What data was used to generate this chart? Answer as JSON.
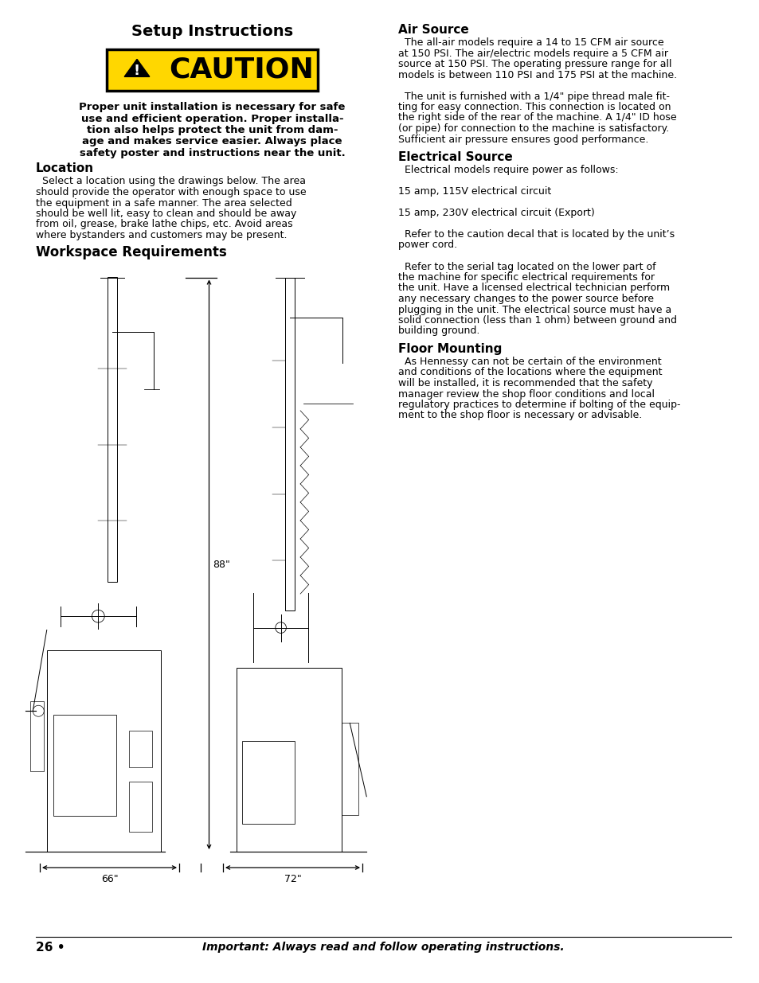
{
  "page_bg": "#ffffff",
  "title": "Setup Instructions",
  "caution_text": "CAUTION",
  "caution_bg": "#FFD700",
  "caution_border": "#000000",
  "loc_head": "Location",
  "ws_head": "Workspace Requirements",
  "dim_88": "88\"",
  "dim_66": "66\"",
  "dim_72": "72\"",
  "left_col_bold_lines": [
    "Proper unit installation is necessary for safe",
    "use and efficient operation. Proper installa-",
    "tion also helps protect the unit from dam-",
    "age and makes service easier. Always place",
    "safety poster and instructions near the unit."
  ],
  "loc_lines": [
    "  Select a location using the drawings below. The area",
    "should provide the operator with enough space to use",
    "the equipment in a safe manner. The area selected",
    "should be well lit, easy to clean and should be away",
    "from oil, grease, brake lathe chips, etc. Avoid areas",
    "where bystanders and customers may be present."
  ],
  "air_head": "Air Source",
  "air_lines": [
    "  The all-air models require a 14 to 15 CFM air source",
    "at 150 PSI. The air/electric models require a 5 CFM air",
    "source at 150 PSI. The operating pressure range for all",
    "models is between 110 PSI and 175 PSI at the machine.",
    "",
    "  The unit is furnished with a 1/4\" pipe thread male fit-",
    "ting for easy connection. This connection is located on",
    "the right side of the rear of the machine. A 1/4\" ID hose",
    "(or pipe) for connection to the machine is satisfactory.",
    "Sufficient air pressure ensures good performance."
  ],
  "elec_head": "Electrical Source",
  "elec_lines": [
    "  Electrical models require power as follows:",
    "",
    "15 amp, 115V electrical circuit",
    "",
    "15 amp, 230V electrical circuit (Export)",
    "",
    "  Refer to the caution decal that is located by the unit’s",
    "power cord.",
    "",
    "  Refer to the serial tag located on the lower part of",
    "the machine for specific electrical requirements for",
    "the unit. Have a licensed electrical technician perform",
    "any necessary changes to the power source before",
    "plugging in the unit. The electrical source must have a",
    "solid connection (less than 1 ohm) between ground and",
    "building ground."
  ],
  "floor_head": "Floor Mounting",
  "floor_lines": [
    "  As Hennessy can not be certain of the environment",
    "and conditions of the locations where the equipment",
    "will be installed, it is recommended that the safety",
    "manager review the shop floor conditions and local",
    "regulatory practices to determine if bolting of the equip-",
    "ment to the shop floor is necessary or advisable."
  ],
  "footer_left": "26 •",
  "footer_right": "Important: Always read and follow operating instructions."
}
